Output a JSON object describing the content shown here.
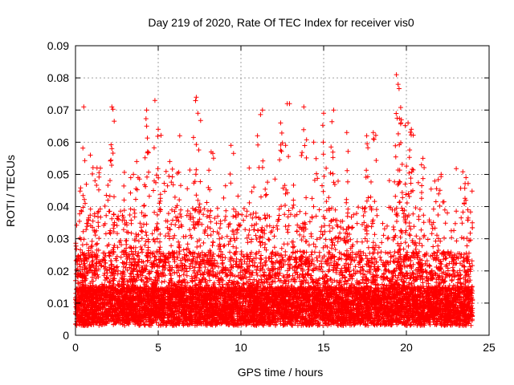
{
  "chart_data": {
    "type": "scatter",
    "title": "Day 219 of 2020, Rate Of TEC Index for receiver vis0",
    "xlabel": "GPS time / hours",
    "ylabel": "ROTI / TECUs",
    "xlim": [
      0,
      25
    ],
    "ylim": [
      0,
      0.09
    ],
    "x_ticks": [
      0,
      5,
      10,
      15,
      20,
      25
    ],
    "x_tick_labels": [
      "0",
      "5",
      "10",
      "15",
      "20",
      "25"
    ],
    "y_ticks": [
      0,
      0.01,
      0.02,
      0.03,
      0.04,
      0.05,
      0.06,
      0.07,
      0.08,
      0.09
    ],
    "y_tick_labels": [
      "0",
      "0.01",
      "0.02",
      "0.03",
      "0.04",
      "0.05",
      "0.06",
      "0.07",
      "0.08",
      "0.09"
    ],
    "grid": true,
    "marker": "plus",
    "color": "#ff0000",
    "data_range_hours": [
      0,
      24
    ],
    "peaks": [
      {
        "x": 0.5,
        "y": 0.071
      },
      {
        "x": 0.9,
        "y": 0.056
      },
      {
        "x": 1.3,
        "y": 0.052
      },
      {
        "x": 2.2,
        "y": 0.071
      },
      {
        "x": 2.2,
        "y": 0.058
      },
      {
        "x": 3.5,
        "y": 0.05
      },
      {
        "x": 3.7,
        "y": 0.054
      },
      {
        "x": 4.3,
        "y": 0.07
      },
      {
        "x": 4.3,
        "y": 0.065
      },
      {
        "x": 4.8,
        "y": 0.073
      },
      {
        "x": 5.0,
        "y": 0.064
      },
      {
        "x": 5.7,
        "y": 0.054
      },
      {
        "x": 6.3,
        "y": 0.062
      },
      {
        "x": 7.3,
        "y": 0.074
      },
      {
        "x": 7.4,
        "y": 0.069
      },
      {
        "x": 8.2,
        "y": 0.057
      },
      {
        "x": 9.4,
        "y": 0.059
      },
      {
        "x": 10.5,
        "y": 0.052
      },
      {
        "x": 11.3,
        "y": 0.07
      },
      {
        "x": 11.0,
        "y": 0.062
      },
      {
        "x": 12.4,
        "y": 0.066
      },
      {
        "x": 12.8,
        "y": 0.072
      },
      {
        "x": 13.8,
        "y": 0.071
      },
      {
        "x": 14.4,
        "y": 0.06
      },
      {
        "x": 15.0,
        "y": 0.069
      },
      {
        "x": 15.6,
        "y": 0.07
      },
      {
        "x": 16.4,
        "y": 0.063
      },
      {
        "x": 17.6,
        "y": 0.062
      },
      {
        "x": 18.0,
        "y": 0.063
      },
      {
        "x": 19.4,
        "y": 0.081
      },
      {
        "x": 19.5,
        "y": 0.078
      },
      {
        "x": 19.7,
        "y": 0.067
      },
      {
        "x": 20.1,
        "y": 0.066
      },
      {
        "x": 20.3,
        "y": 0.064
      },
      {
        "x": 21.0,
        "y": 0.055
      },
      {
        "x": 22.1,
        "y": 0.05
      },
      {
        "x": 23.6,
        "y": 0.049
      }
    ]
  }
}
